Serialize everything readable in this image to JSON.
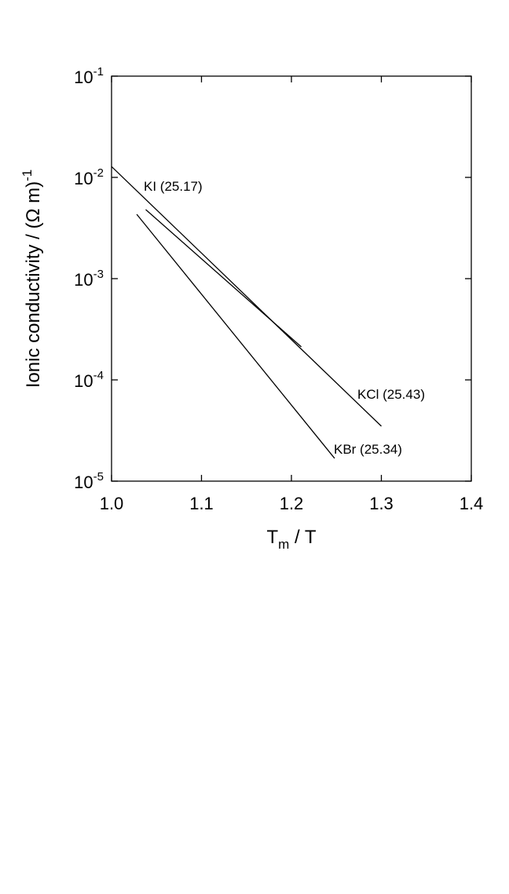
{
  "chart_data": {
    "type": "line",
    "x_label": {
      "main": "T",
      "sub": "m",
      "rest": " / T"
    },
    "y_label": {
      "main": "Ionic conductivity / (Ω m)",
      "sup": "-1"
    },
    "log_y": true,
    "xlim": [
      1.0,
      1.4
    ],
    "xticks": [
      {
        "value": 1.0,
        "label": "1.0"
      },
      1.1,
      1.2,
      1.3,
      1.4
    ],
    "ylim": [
      1e-05,
      0.1
    ],
    "yticks": [
      {
        "value": 0.1,
        "label": "10",
        "exponent": "-1"
      },
      {
        "value": 0.01,
        "label": "10",
        "exponent": "-2"
      },
      {
        "value": 0.001,
        "label": "10",
        "exponent": "-3"
      },
      {
        "value": 0.0001,
        "label": "10",
        "exponent": "-4"
      },
      {
        "value": 1e-05,
        "label": "10",
        "exponent": "-5"
      }
    ],
    "series": [
      {
        "name": "KCl (25.43)",
        "color": "#000000",
        "x": [
          1.0,
          1.3
        ],
        "values": [
          0.0128,
          3.49e-05
        ]
      },
      {
        "name": "KI (25.17)",
        "color": "#000000",
        "x": [
          1.038,
          1.211
        ],
        "values": [
          0.00481,
          0.000212
        ]
      },
      {
        "name": "KBr (25.34)",
        "color": "#000000",
        "x": [
          1.028,
          1.248
        ],
        "values": [
          0.00432,
          1.68e-05
        ]
      }
    ]
  }
}
